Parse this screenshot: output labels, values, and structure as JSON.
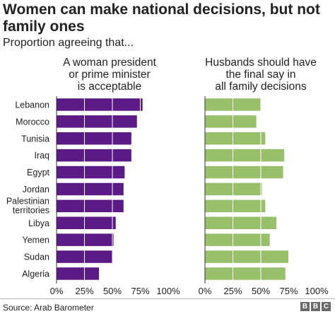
{
  "header": {
    "title": "Women can make national decisions, but not family ones",
    "subtitle": "Proportion agreeing that..."
  },
  "footer": {
    "source": "Source: Arab Barometer",
    "logo_letters": [
      "B",
      "B",
      "C"
    ]
  },
  "colors": {
    "left_bar": "#5c1a86",
    "right_bar": "#98c06b",
    "text": "#222222"
  },
  "chart_data": [
    {
      "type": "bar",
      "orientation": "horizontal",
      "title_lines": [
        "A woman president",
        "or prime minister",
        "is acceptable"
      ],
      "categories": [
        "Lebanon",
        "Morocco",
        "Tunisia",
        "Iraq",
        "Egypt",
        "Jordan",
        "Palestinian territories",
        "Libya",
        "Yemen",
        "Sudan",
        "Algeria"
      ],
      "values": [
        77,
        72,
        67,
        67,
        61,
        60,
        60,
        53,
        51,
        50,
        38
      ],
      "xlim": [
        0,
        100
      ],
      "xticks": [
        "0%",
        "25%",
        "50%",
        "75%",
        "100%"
      ],
      "grid": true
    },
    {
      "type": "bar",
      "orientation": "horizontal",
      "title_lines": [
        "Husbands should have",
        "the final say in",
        "all family decisions"
      ],
      "categories": [
        "Lebanon",
        "Morocco",
        "Tunisia",
        "Iraq",
        "Egypt",
        "Jordan",
        "Palestinian territories",
        "Libya",
        "Yemen",
        "Sudan",
        "Algeria"
      ],
      "values": [
        50,
        46,
        54,
        71,
        70,
        51,
        54,
        64,
        58,
        75,
        72
      ],
      "xlim": [
        0,
        100
      ],
      "xticks": [
        "0%",
        "25%",
        "50%",
        "75%",
        "100%"
      ],
      "grid": true
    }
  ]
}
